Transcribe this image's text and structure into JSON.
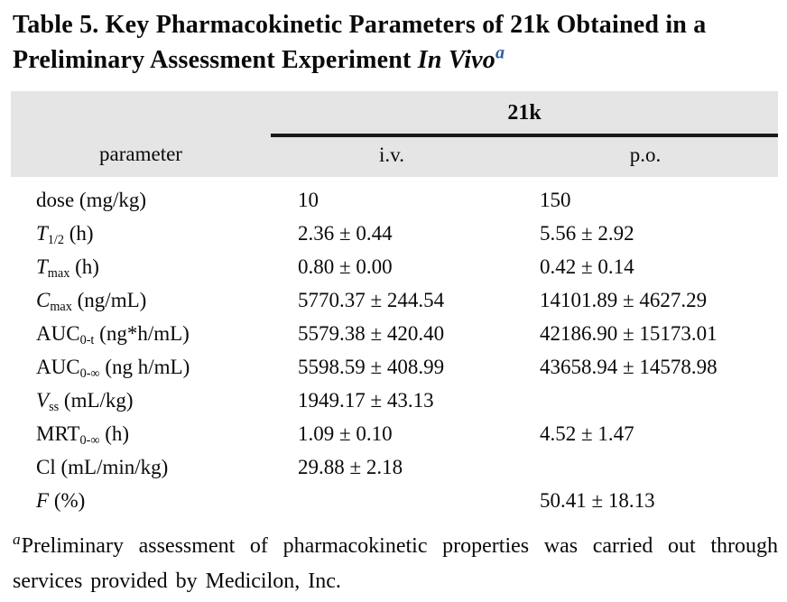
{
  "colors": {
    "title_superscript_blue": "#2d5fa6",
    "table_header_bg": "#e5e5e5",
    "rule_black": "#1b1b1b",
    "text": "#0a0a0a"
  },
  "title": {
    "segments": [
      {
        "text": "Table 5. Key Pharmacokinetic Parameters of 21k Obtained in a Preliminary Assessment Experiment "
      },
      {
        "text": "In Vivo",
        "italic": true
      },
      {
        "text": "a",
        "sup": true
      }
    ]
  },
  "table": {
    "group_header": "21k",
    "column_headers": [
      "parameter",
      "i.v.",
      "p.o."
    ],
    "rows": [
      {
        "param": [
          {
            "text": "dose"
          },
          {
            "text": " (mg/kg)"
          }
        ],
        "iv": "10",
        "po": "150"
      },
      {
        "param": [
          {
            "text": "T",
            "italic": true
          },
          {
            "text": "1/2",
            "sub": true
          },
          {
            "text": " (h)"
          }
        ],
        "iv": "2.36 ± 0.44",
        "po": "5.56 ± 2.92"
      },
      {
        "param": [
          {
            "text": "T",
            "italic": true
          },
          {
            "text": "max",
            "sub": true
          },
          {
            "text": " (h)"
          }
        ],
        "iv": "0.80 ± 0.00",
        "po": "0.42 ± 0.14"
      },
      {
        "param": [
          {
            "text": "C",
            "italic": true
          },
          {
            "text": "max",
            "sub": true
          },
          {
            "text": " (ng/mL)"
          }
        ],
        "iv": "5770.37 ± 244.54",
        "po": "14101.89 ± 4627.29"
      },
      {
        "param": [
          {
            "text": "AUC"
          },
          {
            "text": "0-t",
            "sub": true
          },
          {
            "text": " (ng*h/mL)"
          }
        ],
        "iv": "5579.38 ± 420.40",
        "po": "42186.90 ± 15173.01"
      },
      {
        "param": [
          {
            "text": "AUC"
          },
          {
            "text": "0-∞",
            "sub": true
          },
          {
            "text": " (ng h/mL)"
          }
        ],
        "iv": "5598.59 ± 408.99",
        "po": "43658.94 ± 14578.98"
      },
      {
        "param": [
          {
            "text": "V",
            "italic": true
          },
          {
            "text": "ss",
            "sub": true
          },
          {
            "text": " (mL/kg)"
          }
        ],
        "iv": "1949.17 ± 43.13",
        "po": ""
      },
      {
        "param": [
          {
            "text": "MRT"
          },
          {
            "text": "0-∞",
            "sub": true
          },
          {
            "text": " (h)"
          }
        ],
        "iv": "1.09 ± 0.10",
        "po": "4.52 ± 1.47"
      },
      {
        "param": [
          {
            "text": "Cl"
          },
          {
            "text": " (mL/min/kg)"
          }
        ],
        "iv": "29.88 ± 2.18",
        "po": ""
      },
      {
        "param": [
          {
            "text": "F",
            "italic": true
          },
          {
            "text": " (%)"
          }
        ],
        "iv": "",
        "po": "50.41 ± 18.13"
      }
    ]
  },
  "footnote": {
    "marker": "a",
    "text": "Preliminary assessment of pharmacokinetic properties was carried out through services provided by Medicilon, Inc."
  }
}
